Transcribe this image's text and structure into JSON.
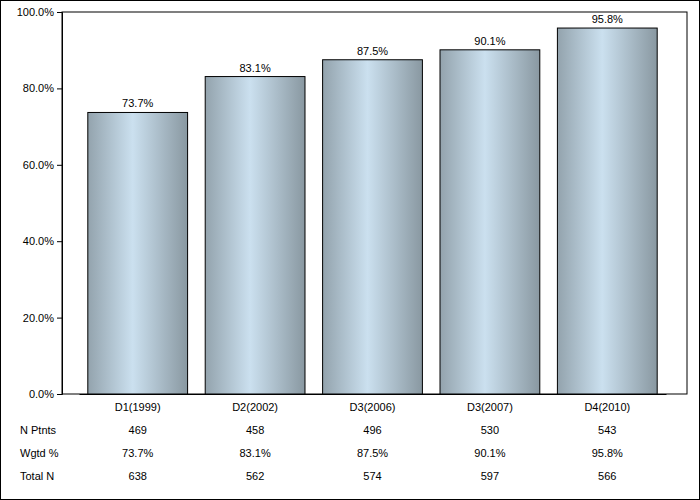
{
  "chart_data": {
    "type": "bar",
    "categories": [
      "D1(1999)",
      "D2(2002)",
      "D3(2006)",
      "D3(2007)",
      "D4(2010)"
    ],
    "values": [
      73.7,
      83.1,
      87.5,
      90.1,
      95.8
    ],
    "value_labels": [
      "73.7%",
      "83.1%",
      "87.5%",
      "90.1%",
      "95.8%"
    ],
    "data_labels": true,
    "color": "#b3c6d3",
    "ylim": [
      0,
      100
    ],
    "yticks": [
      {
        "value": 0,
        "label": "0.0%"
      },
      {
        "value": 20,
        "label": "20.0%"
      },
      {
        "value": 40,
        "label": "40.0%"
      },
      {
        "value": 60,
        "label": "60.0%"
      },
      {
        "value": 80,
        "label": "80.0%"
      },
      {
        "value": 100,
        "label": "100.0%"
      }
    ],
    "grid": false,
    "table": [
      {
        "name": "N Ptnts",
        "values": [
          469,
          458,
          496,
          530,
          543
        ]
      },
      {
        "name": "Wgtd %",
        "values": [
          "73.7%",
          "83.1%",
          "87.5%",
          "90.1%",
          "95.8%"
        ]
      },
      {
        "name": "Total N",
        "values": [
          638,
          562,
          574,
          597,
          566
        ]
      }
    ]
  }
}
